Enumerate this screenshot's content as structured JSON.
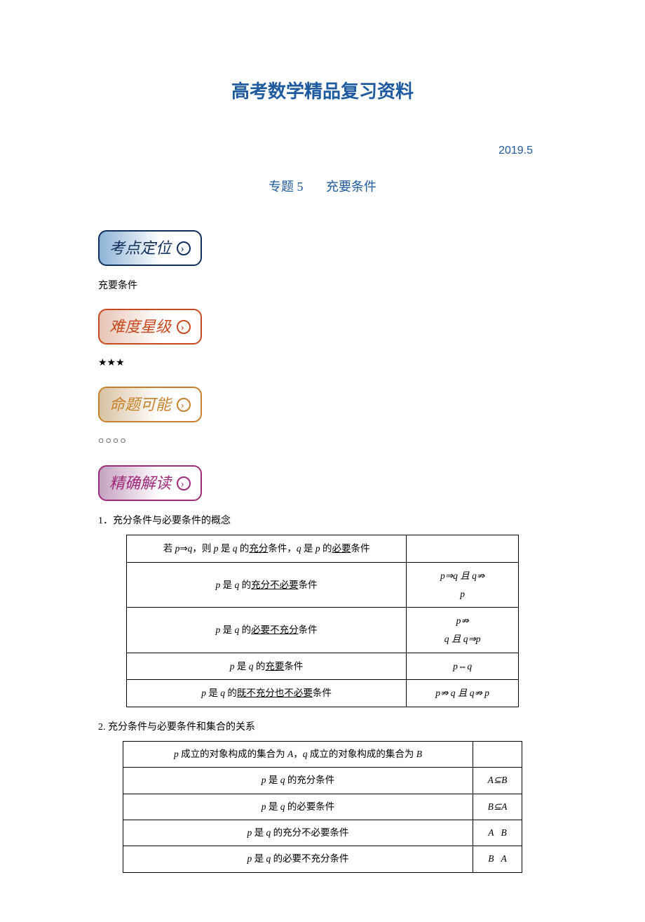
{
  "title": "高考数学精品复习资料",
  "date": "2019.5",
  "subtitle_num": "专题 5",
  "subtitle_text": "充要条件",
  "badges": {
    "b1": "考点定位",
    "b2": "难度星级",
    "b3": "命题可能",
    "b4": "精确解读"
  },
  "text_after_b1": "充要条件",
  "stars": "★★★",
  "circles": "○○○○",
  "section1_heading": "1．充分条件与必要条件的概念",
  "section2_heading": "2. 充分条件与必要条件和集合的关系",
  "table1": {
    "rows": [
      {
        "left_html": "若 <span class='it'>p</span>⇒<span class='it'>q</span>，则 <span class='it'>p</span> 是 <span class='it'>q</span> 的<span class='u'>充分</span>条件，<span class='it'>q</span> 是 <span class='it'>p</span> 的<span class='u'>必要</span>条件",
        "right_html": ""
      },
      {
        "left_html": "<span class='it'>p</span> 是 <span class='it'>q</span> 的<span class='u'>充分不必要</span>条件",
        "right_html": "<span class='it'>p</span>⇒<span class='it'>q</span> 且 <span class='it'>q</span>⇏<br><span class='it'>p</span>"
      },
      {
        "left_html": "<span class='it'>p</span> 是 <span class='it'>q</span> 的<span class='u'>必要不充分</span>条件",
        "right_html": "<span class='it'>p</span>⇏<br><span class='it'>q</span> 且 <span class='it'>q</span>⇒<span class='it'>p</span>"
      },
      {
        "left_html": "<span class='it'>p</span> 是 <span class='it'>q</span> 的<span class='u'>充要</span>条件",
        "right_html": "<span class='it'>p</span>⇔<span class='it'>q</span>"
      },
      {
        "left_html": "<span class='it'>p</span> 是 <span class='it'>q</span> 的<span class='u'>既不充分也不必要</span>条件",
        "right_html": "<span class='it'>p</span>⇏ <span class='it'>q</span> 且 <span class='it'>q</span>⇏ <span class='it'>p</span>"
      }
    ]
  },
  "table2": {
    "rows": [
      {
        "left": "p 成立的对象构成的集合为 A，q 成立的对象构成的集合为 B",
        "right": ""
      },
      {
        "left": "p 是 q 的充分条件",
        "right": "A⊆B"
      },
      {
        "left": "p 是 q 的必要条件",
        "right": "B⊆A"
      },
      {
        "left": "p 是 q 的充分不必要条件",
        "right": "A&nbsp;&nbsp;&nbsp;B"
      },
      {
        "left": "p 是 q 的必要不充分条件",
        "right": "B&nbsp;&nbsp;&nbsp;A"
      }
    ]
  },
  "colors": {
    "title": "#1e5aa0",
    "badge1": "#0f2f5c",
    "badge2": "#c84a1e",
    "badge3": "#c9802b",
    "badge4": "#a02a7a"
  }
}
